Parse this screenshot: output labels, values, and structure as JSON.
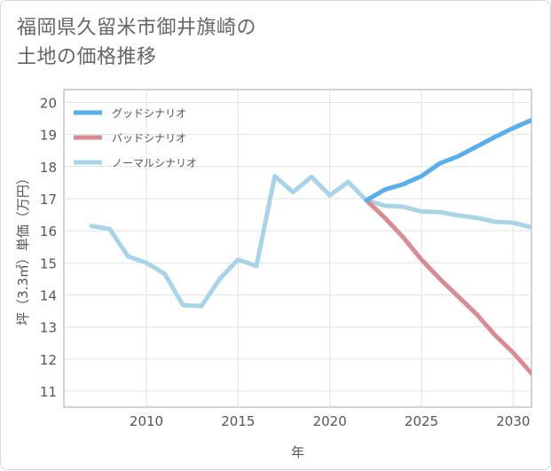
{
  "title": {
    "line1": "福岡県久留米市御井旗崎の",
    "line2": "土地の価格推移"
  },
  "chart_data": {
    "type": "line",
    "xlabel": "年",
    "ylabel": "坪（3.3㎡）単価（万円）",
    "xlim": [
      2005.5,
      2031
    ],
    "ylim": [
      10.5,
      20.4
    ],
    "x_ticks": [
      2010,
      2015,
      2020,
      2025,
      2030
    ],
    "y_ticks": [
      11,
      12,
      13,
      14,
      15,
      16,
      17,
      18,
      19,
      20
    ],
    "legend_position": "top-left",
    "series": [
      {
        "name": "グッドシナリオ",
        "color": "#5aaeec",
        "x": [
          2022,
          2023,
          2024,
          2025,
          2026,
          2027,
          2028,
          2029,
          2030,
          2031
        ],
        "y": [
          16.95,
          17.28,
          17.45,
          17.7,
          18.1,
          18.32,
          18.62,
          18.92,
          19.2,
          19.45
        ]
      },
      {
        "name": "バッドシナリオ",
        "color": "#d98b93",
        "x": [
          2022,
          2023,
          2024,
          2025,
          2026,
          2027,
          2028,
          2029,
          2030,
          2031
        ],
        "y": [
          16.95,
          16.4,
          15.8,
          15.1,
          14.5,
          13.95,
          13.4,
          12.75,
          12.2,
          11.55
        ]
      },
      {
        "name": "ノーマルシナリオ",
        "color": "#a9d4e8",
        "x": [
          2007,
          2008,
          2009,
          2010,
          2011,
          2012,
          2013,
          2014,
          2015,
          2016,
          2017,
          2018,
          2019,
          2020,
          2021,
          2022,
          2023,
          2024,
          2025,
          2026,
          2027,
          2028,
          2029,
          2030,
          2031
        ],
        "y": [
          16.15,
          16.05,
          15.2,
          15.0,
          14.65,
          13.68,
          13.65,
          14.5,
          15.1,
          14.9,
          17.7,
          17.2,
          17.68,
          17.1,
          17.52,
          16.95,
          16.78,
          16.75,
          16.6,
          16.58,
          16.48,
          16.4,
          16.28,
          16.25,
          16.1
        ]
      }
    ]
  }
}
